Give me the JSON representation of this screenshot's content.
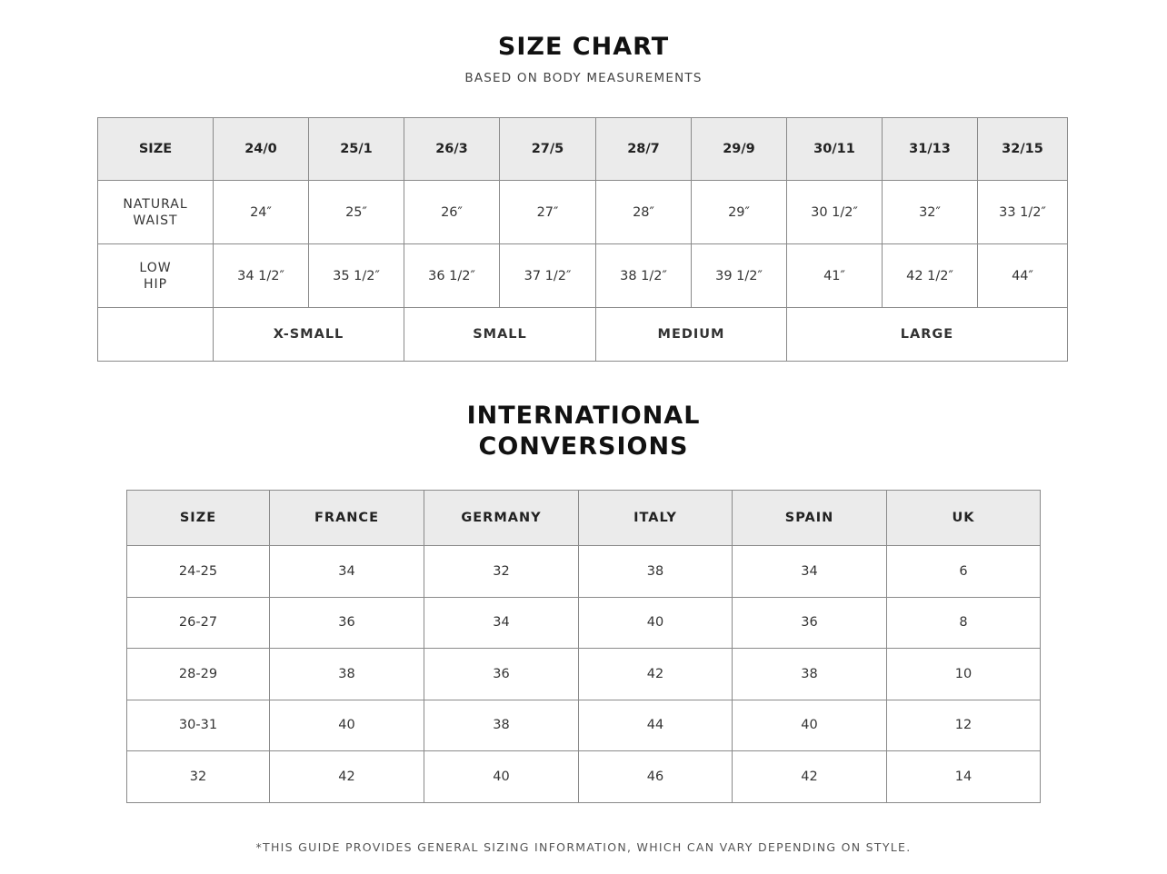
{
  "size_chart": {
    "title": "SIZE CHART",
    "subtitle": "BASED ON BODY MEASUREMENTS",
    "header": [
      "SIZE",
      "24/0",
      "25/1",
      "26/3",
      "27/5",
      "28/7",
      "29/9",
      "30/11",
      "31/13",
      "32/15"
    ],
    "rows": [
      {
        "label": [
          "NATURAL",
          "WAIST"
        ],
        "values": [
          "24″",
          "25″",
          "26″",
          "27″",
          "28″",
          "29″",
          "30 1/2″",
          "32″",
          "33 1/2″"
        ]
      },
      {
        "label": [
          "LOW",
          "HIP"
        ],
        "values": [
          "34 1/2″",
          "35 1/2″",
          "36 1/2″",
          "37 1/2″",
          "38 1/2″",
          "39 1/2″",
          "41″",
          "42 1/2″",
          "44″"
        ]
      }
    ],
    "groups": [
      {
        "label": "X-SMALL",
        "span": 2
      },
      {
        "label": "SMALL",
        "span": 2
      },
      {
        "label": "MEDIUM",
        "span": 2
      },
      {
        "label": "LARGE",
        "span": 3
      }
    ]
  },
  "conversions": {
    "title_line1": "INTERNATIONAL",
    "title_line2": "CONVERSIONS",
    "header": [
      "SIZE",
      "FRANCE",
      "GERMANY",
      "ITALY",
      "SPAIN",
      "UK"
    ],
    "rows": [
      [
        "24-25",
        "34",
        "32",
        "38",
        "34",
        "6"
      ],
      [
        "26-27",
        "36",
        "34",
        "40",
        "36",
        "8"
      ],
      [
        "28-29",
        "38",
        "36",
        "42",
        "38",
        "10"
      ],
      [
        "30-31",
        "40",
        "38",
        "44",
        "40",
        "12"
      ],
      [
        "32",
        "42",
        "40",
        "46",
        "42",
        "14"
      ]
    ]
  },
  "footnote": "*THIS GUIDE PROVIDES GENERAL SIZING INFORMATION, WHICH CAN VARY DEPENDING ON STYLE."
}
